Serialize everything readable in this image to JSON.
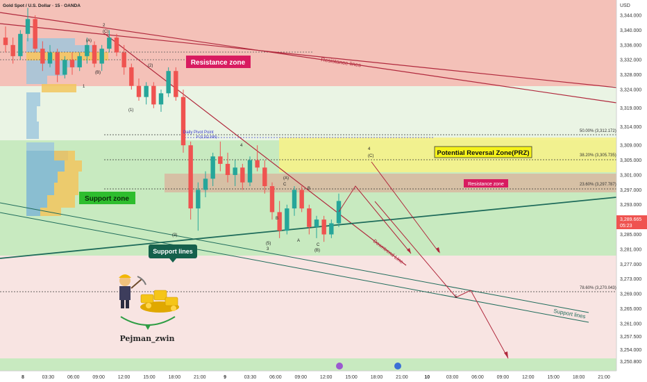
{
  "header": {
    "symbol_title": "Gold Spot / U.S. Dollar · 15 · OANDA",
    "currency": "USD"
  },
  "price_tag": {
    "value": "3,289.665",
    "countdown": "05:23",
    "price": 3289.665
  },
  "zones": {
    "resistance_zone_label": "Resistance zone",
    "support_zone_label": "Support zone",
    "prz_label": "Potential Reversal Zone(PRZ)",
    "inner_resistance_label": "Resistance zone",
    "support_lines_label": "Support lines",
    "resistance_lines_label": "Resistance lines",
    "support_lines_label_2": "Support lines",
    "downtrend_line_label": "Downtrend Line",
    "daily_pivot_label": "Daily Pivot Point",
    "daily_pivot_sub": "P (3,311.595)"
  },
  "fib_levels": [
    {
      "label": "50.00% (3,312.172)",
      "price": 3312.172
    },
    {
      "label": "38.20% (3,305.735)",
      "price": 3305.735
    },
    {
      "label": "23.60% (3,297.787)",
      "price": 3297.787
    },
    {
      "label": "78.60% (3,270.043)",
      "price": 3270.043
    }
  ],
  "author": {
    "name": "Pejman_zwin"
  },
  "colors": {
    "red_zone": "#f4c1b8",
    "green_zone": "#c8eac0",
    "yellow_zone": "#f5f28a",
    "brown_zone": "#d8b9a0",
    "support_line": "#1e6b5a",
    "resistance_line": "#b0283c",
    "candle_up": "#26a69a",
    "candle_down": "#ef5350",
    "price_tag": "#ef5350"
  },
  "chart_data": {
    "type": "candlestick",
    "title": "Gold Spot / U.S. Dollar · 15 · OANDA",
    "ylabel": "USD",
    "ylim": [
      3249,
      3347
    ],
    "y_ticks": [
      "3,344.000",
      "3,340.000",
      "3,336.000",
      "3,332.000",
      "3,328.000",
      "3,324.000",
      "3,319.000",
      "3,314.000",
      "3,309.000",
      "3,305.000",
      "3,301.000",
      "3,297.000",
      "3,293.000",
      "3,289.000",
      "3,285.000",
      "3,281.000",
      "3,277.000",
      "3,273.000",
      "3,269.000",
      "3,265.000",
      "3,261.000",
      "3,257.500",
      "3,254.000",
      "3,250.800"
    ],
    "x_ticks": [
      "8",
      "03:30",
      "06:00",
      "09:00",
      "12:00",
      "15:00",
      "18:00",
      "21:00",
      "9",
      "03:30",
      "06:00",
      "09:00",
      "12:00",
      "15:00",
      "18:00",
      "21:00",
      "10",
      "03:00",
      "06:00",
      "09:00",
      "12:00",
      "15:00",
      "18:00",
      "21:00"
    ],
    "series": [
      {
        "values": [
          [
            3338,
            3341,
            3334,
            3336
          ],
          [
            3336,
            3338,
            3331,
            3333
          ],
          [
            3333,
            3340,
            3332,
            3339
          ],
          [
            3339,
            3346,
            3337,
            3343
          ],
          [
            3343,
            3344,
            3334,
            3335
          ],
          [
            3335,
            3337,
            3329,
            3331
          ],
          [
            3331,
            3336,
            3330,
            3334
          ],
          [
            3334,
            3335,
            3326,
            3328
          ],
          [
            3328,
            3333,
            3327,
            3332
          ],
          [
            3332,
            3334,
            3328,
            3330
          ],
          [
            3330,
            3334,
            3329,
            3333
          ],
          [
            3333,
            3338,
            3331,
            3336
          ],
          [
            3336,
            3337,
            3330,
            3331
          ],
          [
            3331,
            3336,
            3329,
            3335
          ],
          [
            3335,
            3340,
            3334,
            3338
          ],
          [
            3338,
            3339,
            3333,
            3334
          ],
          [
            3334,
            3336,
            3328,
            3330
          ],
          [
            3330,
            3331,
            3324,
            3325
          ],
          [
            3325,
            3327,
            3321,
            3322
          ],
          [
            3322,
            3326,
            3320,
            3325
          ],
          [
            3325,
            3326,
            3319,
            3320
          ],
          [
            3320,
            3324,
            3318,
            3323
          ],
          [
            3323,
            3330,
            3322,
            3329
          ],
          [
            3329,
            3330,
            3321,
            3322
          ],
          [
            3322,
            3324,
            3307,
            3309
          ],
          [
            3309,
            3310,
            3289,
            3292
          ],
          [
            3292,
            3299,
            3286,
            3297
          ],
          [
            3297,
            3302,
            3295,
            3300
          ],
          [
            3300,
            3307,
            3298,
            3306
          ],
          [
            3306,
            3310,
            3302,
            3304
          ],
          [
            3304,
            3307,
            3299,
            3301
          ],
          [
            3301,
            3305,
            3298,
            3303
          ],
          [
            3303,
            3304,
            3297,
            3299
          ],
          [
            3299,
            3306,
            3298,
            3305
          ],
          [
            3305,
            3309,
            3302,
            3303
          ],
          [
            3303,
            3305,
            3296,
            3298
          ],
          [
            3298,
            3299,
            3289,
            3291
          ],
          [
            3291,
            3294,
            3284,
            3286
          ],
          [
            3286,
            3293,
            3285,
            3292
          ],
          [
            3292,
            3298,
            3290,
            3297
          ],
          [
            3297,
            3298,
            3291,
            3292
          ],
          [
            3292,
            3293,
            3285,
            3287
          ],
          [
            3287,
            3290,
            3284,
            3289
          ],
          [
            3289,
            3290,
            3283,
            3285
          ],
          [
            3285,
            3289,
            3284,
            3288
          ],
          [
            3288,
            3296,
            3287,
            3294
          ]
        ]
      }
    ]
  }
}
